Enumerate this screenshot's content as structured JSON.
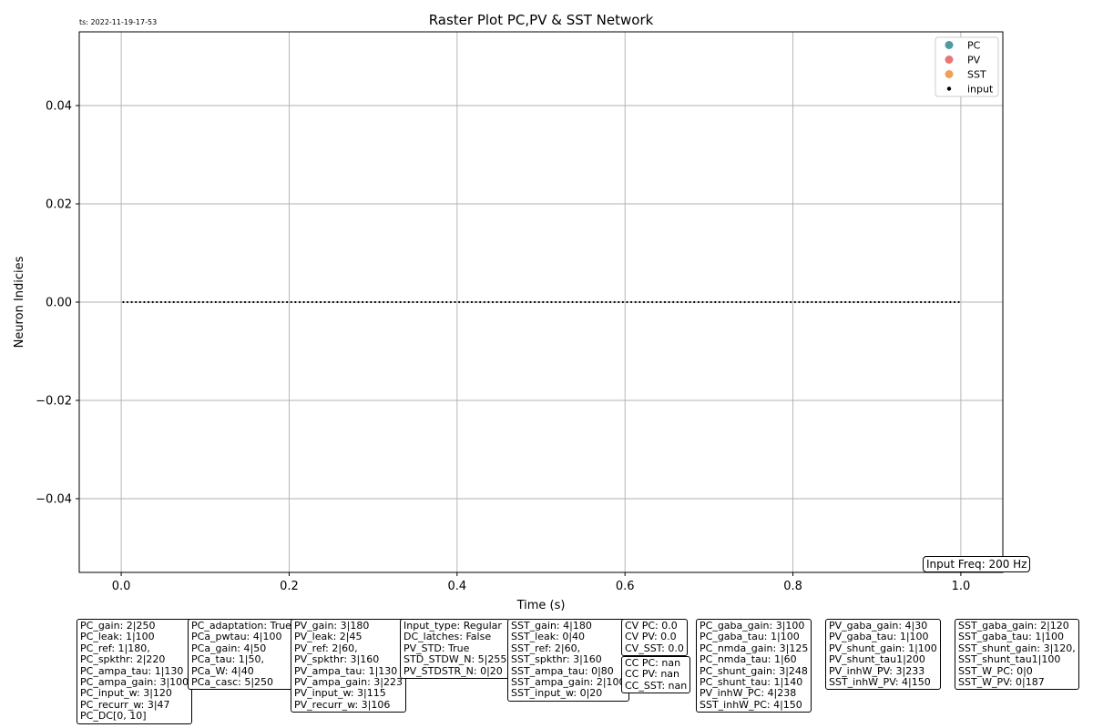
{
  "timestamp": "ts: 2022-11-19-17-53",
  "input_freq": "Input Freq: 200 Hz",
  "colors": {
    "PC": "#4f9a9e",
    "PV": "#e97676",
    "SST": "#ef9f58",
    "input": "#000000",
    "grid": "#b0b0b0"
  },
  "chart_data": {
    "type": "scatter",
    "title": "Raster Plot PC,PV & SST Network",
    "xlabel": "Time (s)",
    "ylabel": "Neuron Indicies",
    "xlim": [
      -0.05,
      1.05
    ],
    "ylim": [
      -0.055,
      0.055
    ],
    "xticks": [
      0.0,
      0.2,
      0.4,
      0.6,
      0.8,
      1.0
    ],
    "xtick_labels": [
      "0.0",
      "0.2",
      "0.4",
      "0.6",
      "0.8",
      "1.0"
    ],
    "yticks": [
      -0.04,
      -0.02,
      0.0,
      0.02,
      0.04
    ],
    "ytick_labels": [
      "−0.04",
      "−0.02",
      "0.00",
      "0.02",
      "0.04"
    ],
    "grid": true,
    "legend_position": "top-right",
    "legend": [
      {
        "name": "PC",
        "marker": "circle"
      },
      {
        "name": "PV",
        "marker": "circle"
      },
      {
        "name": "SST",
        "marker": "circle"
      },
      {
        "name": "input",
        "marker": "dot"
      }
    ],
    "series": [
      {
        "name": "PC",
        "x": [],
        "y": []
      },
      {
        "name": "PV",
        "x": [],
        "y": []
      },
      {
        "name": "SST",
        "x": [],
        "y": []
      },
      {
        "name": "input",
        "rate_hz": 200,
        "t_start": 0.0,
        "t_end": 1.0,
        "y_value": 0
      }
    ]
  },
  "param_boxes": [
    {
      "id": "pc",
      "lines": [
        "PC_gain: 2|250",
        "PC_leak: 1|100",
        "PC_ref: 1|180,",
        "PC_spkthr: 2|220",
        "PC_ampa_tau: 1|130",
        "PC_ampa_gain: 3|100",
        "PC_input_w: 3|120",
        "PC_recurr_w: 3|47",
        "PC_DC[0, 10]"
      ]
    },
    {
      "id": "pca",
      "lines": [
        "PC_adaptation: True",
        "PCa_pwtau: 4|100",
        "PCa_gain: 4|50",
        "PCa_tau: 1|50,",
        "PCa_W: 4|40",
        "PCa_casc: 5|250"
      ]
    },
    {
      "id": "pv",
      "lines": [
        "PV_gain: 3|180",
        "PV_leak: 2|45",
        "PV_ref: 2|60,",
        "PV_spkthr: 3|160",
        "PV_ampa_tau: 1|130",
        "PV_ampa_gain: 3|223",
        "PV_input_w: 3|115",
        "PV_recurr_w: 3|106"
      ]
    },
    {
      "id": "input",
      "lines": [
        "Input_type: Regular",
        "DC_latches: False",
        "PV_STD: True",
        "STD_STDW_N: 5|255",
        "PV_STDSTR_N: 0|20"
      ]
    },
    {
      "id": "sst",
      "lines": [
        "SST_gain: 4|180",
        "SST_leak: 0|40",
        "SST_ref: 2|60,",
        "SST_spkthr: 3|160",
        "SST_ampa_tau: 0|80",
        "SST_ampa_gain: 2|100",
        "SST_input_w: 0|20"
      ]
    },
    {
      "id": "cv",
      "lines": [
        "CV PC: 0.0",
        "CV PV: 0.0",
        "CV_SST: 0.0"
      ]
    },
    {
      "id": "cc",
      "lines": [
        "CC PC: nan",
        "CC PV: nan",
        "CC_SST: nan"
      ]
    },
    {
      "id": "pc-inh",
      "lines": [
        "PC_gaba_gain: 3|100",
        "PC_gaba_tau: 1|100",
        "PC_nmda_gain: 3|125",
        "PC_nmda_tau: 1|60",
        "PC_shunt_gain: 3|248",
        "PC_shunt_tau: 1|140",
        "PV_inhW_PC: 4|238",
        "SST_inhW_PC: 4|150"
      ]
    },
    {
      "id": "pv-inh",
      "lines": [
        "PV_gaba_gain: 4|30",
        "PV_gaba_tau: 1|100",
        "PV_shunt_gain: 1|100",
        "PV_shunt_tau1|200",
        "PV_inhW_PV: 3|233",
        "SST_inhW_PV: 4|150"
      ]
    },
    {
      "id": "sst-inh",
      "lines": [
        "SST_gaba_gain: 2|120",
        "SST_gaba_tau: 1|100",
        "SST_shunt_gain: 3|120,",
        "SST_shunt_tau1|100",
        "SST_W_PC: 0|0",
        "SST_W_PV: 0|187"
      ]
    }
  ]
}
